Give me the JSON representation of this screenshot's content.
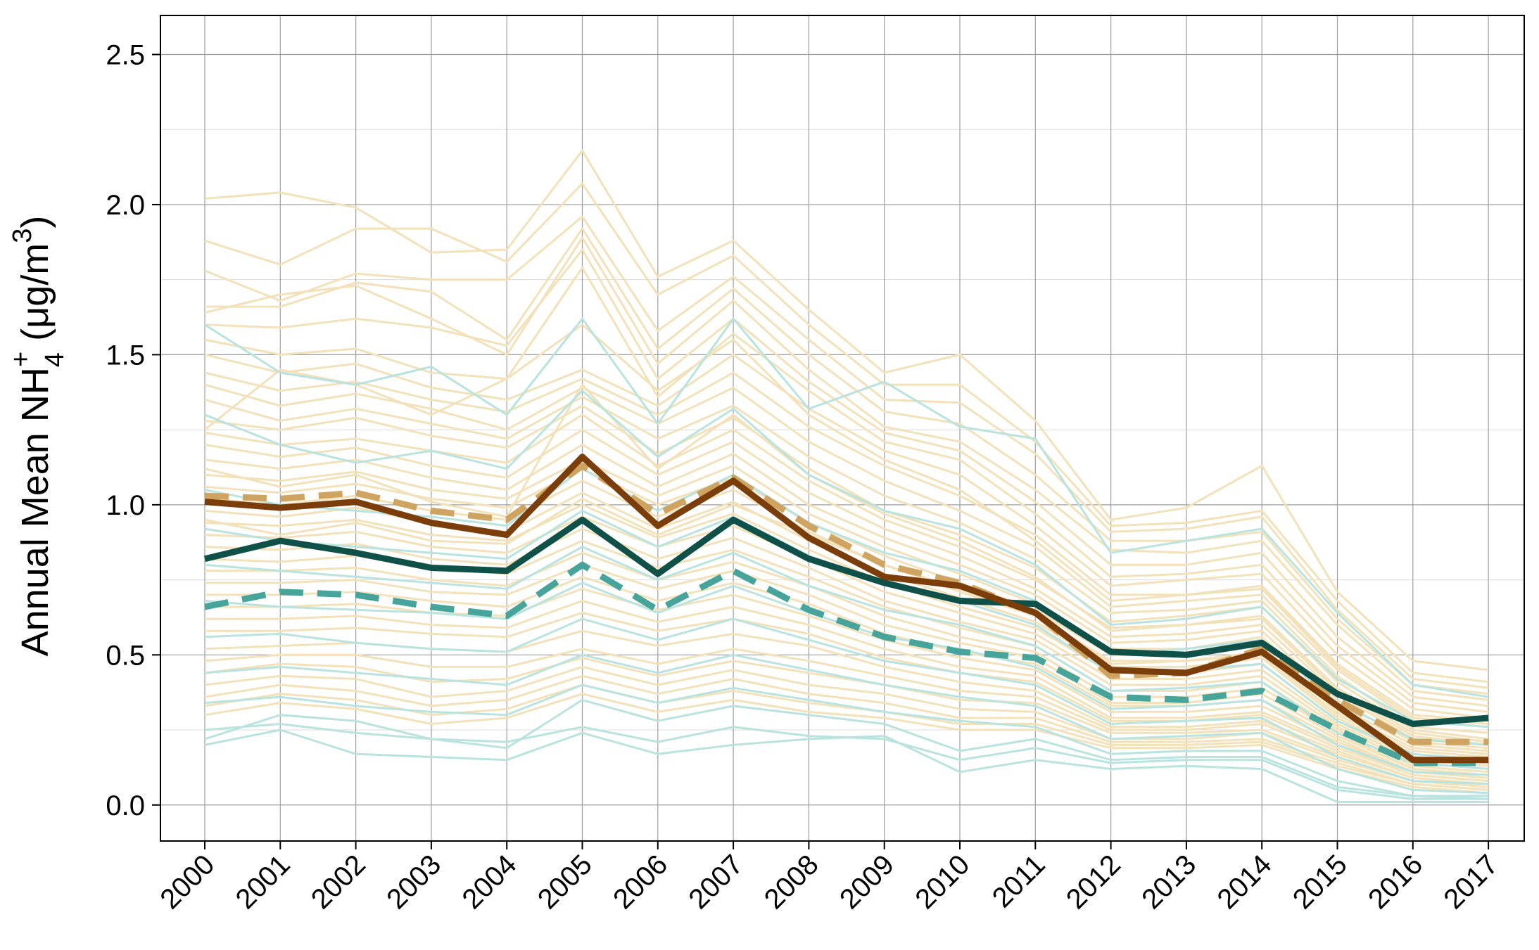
{
  "chart_data": {
    "type": "line",
    "ylabel": "Annual Mean NH4+ (μg/m3)",
    "ylabel_parts": {
      "lead": "Annual Mean NH",
      "sub": "4",
      "sup": "+",
      "unit_open": " (μg/m",
      "unit_sup": "3",
      "unit_close": ")"
    },
    "xlabel": "",
    "x": [
      "2000",
      "2001",
      "2002",
      "2003",
      "2004",
      "2005",
      "2006",
      "2007",
      "2008",
      "2009",
      "2010",
      "2011",
      "2012",
      "2013",
      "2014",
      "2015",
      "2016",
      "2017"
    ],
    "ylim": [
      -0.12,
      2.63
    ],
    "yticks": [
      0.0,
      0.5,
      1.0,
      1.5,
      2.0,
      2.5
    ],
    "ytick_labels": [
      "0.0",
      "0.5",
      "1.0",
      "1.5",
      "2.0",
      "2.5"
    ],
    "grid": true,
    "legend": "none",
    "colors": {
      "tan_sites": "#f2e1b9",
      "teal_sites": "#b9e3df",
      "brown_mean": "#7b3d0a",
      "tan_median": "#cfa461",
      "dark_teal_mean": "#0f5148",
      "teal_median": "#46a49a",
      "grid_major": "#9e9e9e",
      "grid_minor": "#dcdcdc"
    },
    "background_series": {
      "tan": [
        [
          2.02,
          2.04,
          1.99,
          1.84,
          1.85,
          2.18,
          1.76,
          1.88,
          1.65,
          1.44,
          1.5,
          1.28,
          0.95,
          0.99,
          1.13,
          0.71,
          0.48,
          0.45
        ],
        [
          1.88,
          1.8,
          1.92,
          1.92,
          1.81,
          2.07,
          1.7,
          1.83,
          1.6,
          1.4,
          1.4,
          1.21,
          0.93,
          0.94,
          0.98,
          0.68,
          0.44,
          0.41
        ],
        [
          1.78,
          1.68,
          1.77,
          1.75,
          1.75,
          1.96,
          1.58,
          1.76,
          1.55,
          1.35,
          1.34,
          1.17,
          0.91,
          0.92,
          0.96,
          0.65,
          0.42,
          0.39
        ],
        [
          1.66,
          1.66,
          1.74,
          1.71,
          1.55,
          1.92,
          1.52,
          1.72,
          1.5,
          1.31,
          1.27,
          1.1,
          0.88,
          0.88,
          0.91,
          0.62,
          0.4,
          0.37
        ],
        [
          1.64,
          1.7,
          1.73,
          1.62,
          1.5,
          1.89,
          1.47,
          1.68,
          1.45,
          1.26,
          1.21,
          1.05,
          0.85,
          0.84,
          0.88,
          0.6,
          0.38,
          0.35
        ],
        [
          1.6,
          1.59,
          1.62,
          1.59,
          1.53,
          1.85,
          1.42,
          1.62,
          1.41,
          1.24,
          1.18,
          1.01,
          0.8,
          0.8,
          0.84,
          0.56,
          0.36,
          0.33
        ],
        [
          1.55,
          1.5,
          1.52,
          1.44,
          1.42,
          1.79,
          1.36,
          1.57,
          1.38,
          1.21,
          1.15,
          0.97,
          0.76,
          0.77,
          0.8,
          0.53,
          0.34,
          0.31
        ],
        [
          1.5,
          1.44,
          1.47,
          1.39,
          1.35,
          1.45,
          1.33,
          1.5,
          1.32,
          1.18,
          1.1,
          0.93,
          0.73,
          0.75,
          0.77,
          0.5,
          0.32,
          0.29
        ],
        [
          1.44,
          1.38,
          1.41,
          1.35,
          1.31,
          1.42,
          1.3,
          1.44,
          1.26,
          1.13,
          1.03,
          0.9,
          0.7,
          0.7,
          0.73,
          0.47,
          0.3,
          0.28
        ],
        [
          1.4,
          1.33,
          1.37,
          1.32,
          1.25,
          1.39,
          1.27,
          1.39,
          1.21,
          1.08,
          0.98,
          0.86,
          0.66,
          0.68,
          0.7,
          0.45,
          0.28,
          0.26
        ],
        [
          1.35,
          1.28,
          1.32,
          1.27,
          1.22,
          1.36,
          1.22,
          1.33,
          1.16,
          1.03,
          0.94,
          0.82,
          0.64,
          0.65,
          0.68,
          0.43,
          0.26,
          0.24
        ],
        [
          1.28,
          1.25,
          1.29,
          1.23,
          1.19,
          1.33,
          1.17,
          1.29,
          1.12,
          0.98,
          0.9,
          0.79,
          0.61,
          0.63,
          0.66,
          0.41,
          0.25,
          0.22
        ],
        [
          1.24,
          1.2,
          1.22,
          1.18,
          1.14,
          1.3,
          1.13,
          1.25,
          1.08,
          0.95,
          0.86,
          0.75,
          0.59,
          0.6,
          0.63,
          0.39,
          0.24,
          0.21
        ],
        [
          1.2,
          1.16,
          1.19,
          1.13,
          1.09,
          1.25,
          1.1,
          1.21,
          1.04,
          0.92,
          0.83,
          0.72,
          0.56,
          0.57,
          0.6,
          0.37,
          0.22,
          0.2
        ],
        [
          1.15,
          1.12,
          1.15,
          1.09,
          1.05,
          1.2,
          1.06,
          1.17,
          1.0,
          0.89,
          0.8,
          0.7,
          0.54,
          0.55,
          0.58,
          0.35,
          0.21,
          0.19
        ],
        [
          1.1,
          1.08,
          1.11,
          1.05,
          1.02,
          1.15,
          1.03,
          1.13,
          0.97,
          0.86,
          0.77,
          0.67,
          0.52,
          0.52,
          0.56,
          0.33,
          0.2,
          0.18
        ],
        [
          1.06,
          1.04,
          1.07,
          1.02,
          0.99,
          1.12,
          1.0,
          1.09,
          0.94,
          0.83,
          0.74,
          0.65,
          0.5,
          0.5,
          0.53,
          0.31,
          0.19,
          0.17
        ],
        [
          1.02,
          1.0,
          1.03,
          0.98,
          0.95,
          1.08,
          0.96,
          1.05,
          0.91,
          0.8,
          0.71,
          0.63,
          0.48,
          0.48,
          0.51,
          0.3,
          0.18,
          0.16
        ],
        [
          0.98,
          0.96,
          0.99,
          0.94,
          0.91,
          1.04,
          0.92,
          1.01,
          0.88,
          0.77,
          0.69,
          0.61,
          0.46,
          0.46,
          0.49,
          0.29,
          0.17,
          0.15
        ],
        [
          0.94,
          0.93,
          0.95,
          0.9,
          0.88,
          1.0,
          0.89,
          0.97,
          0.85,
          0.74,
          0.66,
          0.59,
          0.44,
          0.44,
          0.47,
          0.28,
          0.16,
          0.14
        ],
        [
          0.9,
          0.89,
          0.91,
          0.86,
          0.84,
          0.96,
          0.86,
          0.93,
          0.82,
          0.71,
          0.64,
          0.57,
          0.42,
          0.42,
          0.45,
          0.27,
          0.15,
          0.13
        ],
        [
          0.86,
          0.85,
          0.87,
          0.82,
          0.8,
          0.92,
          0.82,
          0.89,
          0.79,
          0.68,
          0.61,
          0.55,
          0.4,
          0.4,
          0.43,
          0.26,
          0.14,
          0.12
        ],
        [
          0.82,
          0.81,
          0.83,
          0.79,
          0.77,
          0.88,
          0.79,
          0.85,
          0.76,
          0.66,
          0.59,
          0.53,
          0.38,
          0.38,
          0.41,
          0.25,
          0.13,
          0.11
        ],
        [
          0.78,
          0.78,
          0.79,
          0.75,
          0.73,
          0.84,
          0.75,
          0.81,
          0.73,
          0.63,
          0.56,
          0.51,
          0.36,
          0.36,
          0.39,
          0.24,
          0.12,
          0.1
        ],
        [
          0.74,
          0.74,
          0.75,
          0.71,
          0.7,
          0.8,
          0.72,
          0.78,
          0.7,
          0.6,
          0.54,
          0.49,
          0.34,
          0.34,
          0.37,
          0.23,
          0.12,
          0.1
        ],
        [
          0.7,
          0.7,
          0.71,
          0.68,
          0.66,
          0.76,
          0.68,
          0.74,
          0.67,
          0.57,
          0.51,
          0.47,
          0.33,
          0.33,
          0.35,
          0.22,
          0.11,
          0.09
        ],
        [
          0.66,
          0.66,
          0.67,
          0.64,
          0.63,
          0.72,
          0.65,
          0.7,
          0.63,
          0.55,
          0.49,
          0.45,
          0.31,
          0.31,
          0.33,
          0.21,
          0.11,
          0.09
        ],
        [
          0.62,
          0.62,
          0.63,
          0.6,
          0.59,
          0.68,
          0.61,
          0.66,
          0.6,
          0.52,
          0.46,
          0.43,
          0.29,
          0.29,
          0.31,
          0.2,
          0.1,
          0.08
        ],
        [
          0.58,
          0.58,
          0.59,
          0.57,
          0.56,
          0.64,
          0.58,
          0.62,
          0.57,
          0.49,
          0.44,
          0.41,
          0.28,
          0.28,
          0.3,
          0.19,
          0.1,
          0.08
        ],
        [
          0.52,
          0.53,
          0.54,
          0.52,
          0.51,
          0.58,
          0.53,
          0.57,
          0.53,
          0.46,
          0.41,
          0.38,
          0.26,
          0.26,
          0.28,
          0.18,
          0.09,
          0.07
        ],
        [
          0.48,
          0.5,
          0.5,
          0.46,
          0.46,
          0.52,
          0.47,
          0.52,
          0.48,
          0.43,
          0.38,
          0.36,
          0.25,
          0.25,
          0.27,
          0.17,
          0.09,
          0.07
        ],
        [
          0.44,
          0.47,
          0.46,
          0.41,
          0.42,
          0.49,
          0.43,
          0.48,
          0.44,
          0.4,
          0.35,
          0.34,
          0.24,
          0.24,
          0.25,
          0.16,
          0.08,
          0.06
        ],
        [
          0.4,
          0.43,
          0.42,
          0.36,
          0.38,
          0.46,
          0.4,
          0.45,
          0.4,
          0.37,
          0.32,
          0.31,
          0.22,
          0.22,
          0.24,
          0.15,
          0.08,
          0.06
        ],
        [
          0.36,
          0.4,
          0.38,
          0.33,
          0.35,
          0.43,
          0.37,
          0.42,
          0.37,
          0.34,
          0.29,
          0.29,
          0.21,
          0.21,
          0.22,
          0.14,
          0.07,
          0.05
        ],
        [
          0.33,
          0.37,
          0.35,
          0.3,
          0.32,
          0.4,
          0.34,
          0.38,
          0.34,
          0.31,
          0.27,
          0.27,
          0.2,
          0.2,
          0.21,
          0.13,
          0.07,
          0.05
        ],
        [
          0.3,
          0.34,
          0.32,
          0.27,
          0.29,
          0.37,
          0.31,
          0.35,
          0.31,
          0.29,
          0.25,
          0.25,
          0.19,
          0.19,
          0.2,
          0.12,
          0.06,
          0.04
        ],
        [
          1.25,
          1.45,
          1.4,
          1.3,
          1.42,
          1.6,
          1.38,
          1.55,
          1.3,
          1.15,
          1.05,
          0.88,
          0.68,
          0.7,
          0.72,
          0.46,
          0.29,
          0.27
        ],
        [
          1.12,
          1.06,
          1.1,
          1.01,
          0.96,
          1.4,
          1.12,
          1.3,
          1.1,
          0.97,
          0.88,
          0.76,
          0.58,
          0.6,
          0.62,
          0.38,
          0.23,
          0.2
        ],
        [
          0.95,
          0.9,
          0.94,
          0.88,
          0.87,
          1.02,
          0.9,
          1.0,
          0.9,
          0.8,
          0.72,
          0.63,
          0.47,
          0.48,
          0.5,
          0.3,
          0.18,
          0.16
        ]
      ],
      "teal": [
        [
          1.6,
          1.44,
          1.4,
          1.46,
          1.3,
          1.62,
          1.27,
          1.62,
          1.32,
          1.41,
          1.26,
          1.22,
          0.84,
          0.88,
          0.92,
          0.64,
          0.4,
          0.36
        ],
        [
          1.3,
          1.2,
          1.14,
          1.18,
          1.12,
          1.38,
          1.16,
          1.32,
          1.1,
          0.98,
          0.92,
          0.8,
          0.6,
          0.62,
          0.66,
          0.42,
          0.28,
          0.26
        ],
        [
          1.05,
          1.0,
          0.98,
          0.96,
          0.93,
          1.12,
          0.98,
          1.1,
          0.94,
          0.84,
          0.78,
          0.68,
          0.5,
          0.52,
          0.55,
          0.34,
          0.22,
          0.2
        ],
        [
          0.92,
          0.88,
          0.86,
          0.84,
          0.82,
          0.98,
          0.86,
          0.96,
          0.83,
          0.74,
          0.68,
          0.6,
          0.44,
          0.45,
          0.47,
          0.28,
          0.17,
          0.15
        ],
        [
          0.8,
          0.78,
          0.76,
          0.74,
          0.72,
          0.86,
          0.75,
          0.84,
          0.73,
          0.65,
          0.6,
          0.53,
          0.38,
          0.39,
          0.41,
          0.24,
          0.14,
          0.12
        ],
        [
          0.68,
          0.66,
          0.65,
          0.64,
          0.62,
          0.74,
          0.64,
          0.73,
          0.64,
          0.56,
          0.52,
          0.46,
          0.32,
          0.33,
          0.35,
          0.2,
          0.11,
          0.1
        ],
        [
          0.56,
          0.57,
          0.54,
          0.52,
          0.51,
          0.62,
          0.55,
          0.62,
          0.55,
          0.48,
          0.44,
          0.4,
          0.27,
          0.28,
          0.29,
          0.16,
          0.08,
          0.07
        ],
        [
          0.44,
          0.46,
          0.44,
          0.42,
          0.4,
          0.5,
          0.44,
          0.5,
          0.45,
          0.4,
          0.36,
          0.33,
          0.22,
          0.23,
          0.24,
          0.12,
          0.05,
          0.04
        ],
        [
          0.34,
          0.36,
          0.33,
          0.31,
          0.3,
          0.4,
          0.34,
          0.39,
          0.35,
          0.31,
          0.28,
          0.26,
          0.17,
          0.18,
          0.18,
          0.08,
          0.03,
          0.02
        ],
        [
          0.25,
          0.27,
          0.24,
          0.22,
          0.21,
          0.26,
          0.21,
          0.26,
          0.23,
          0.22,
          0.15,
          0.19,
          0.14,
          0.15,
          0.15,
          0.05,
          0.02,
          0.02
        ],
        [
          0.2,
          0.25,
          0.17,
          0.16,
          0.15,
          0.24,
          0.17,
          0.2,
          0.22,
          0.23,
          0.11,
          0.15,
          0.12,
          0.13,
          0.12,
          0.01,
          0.01,
          0.01
        ],
        [
          0.22,
          0.3,
          0.28,
          0.22,
          0.19,
          0.35,
          0.28,
          0.33,
          0.3,
          0.27,
          0.18,
          0.22,
          0.15,
          0.16,
          0.16,
          0.06,
          0.03,
          0.03
        ]
      ]
    },
    "series": [
      {
        "key": "tan_median",
        "style": "dashed",
        "values": [
          1.03,
          1.02,
          1.04,
          0.98,
          0.95,
          1.13,
          0.97,
          1.09,
          0.93,
          0.8,
          0.74,
          0.64,
          0.43,
          0.44,
          0.52,
          0.35,
          0.21,
          0.21
        ]
      },
      {
        "key": "teal_median",
        "style": "dashed",
        "values": [
          0.66,
          0.71,
          0.7,
          0.66,
          0.63,
          0.8,
          0.65,
          0.78,
          0.65,
          0.56,
          0.51,
          0.49,
          0.36,
          0.35,
          0.38,
          0.25,
          0.14,
          0.14
        ]
      },
      {
        "key": "dark_teal_mean",
        "style": "solid",
        "values": [
          0.82,
          0.88,
          0.84,
          0.79,
          0.78,
          0.95,
          0.77,
          0.95,
          0.82,
          0.74,
          0.68,
          0.67,
          0.51,
          0.5,
          0.54,
          0.37,
          0.27,
          0.29
        ]
      },
      {
        "key": "brown_mean",
        "style": "solid",
        "values": [
          1.01,
          0.99,
          1.01,
          0.94,
          0.9,
          1.16,
          0.93,
          1.08,
          0.89,
          0.76,
          0.73,
          0.64,
          0.45,
          0.44,
          0.51,
          0.33,
          0.15,
          0.15
        ]
      }
    ]
  }
}
